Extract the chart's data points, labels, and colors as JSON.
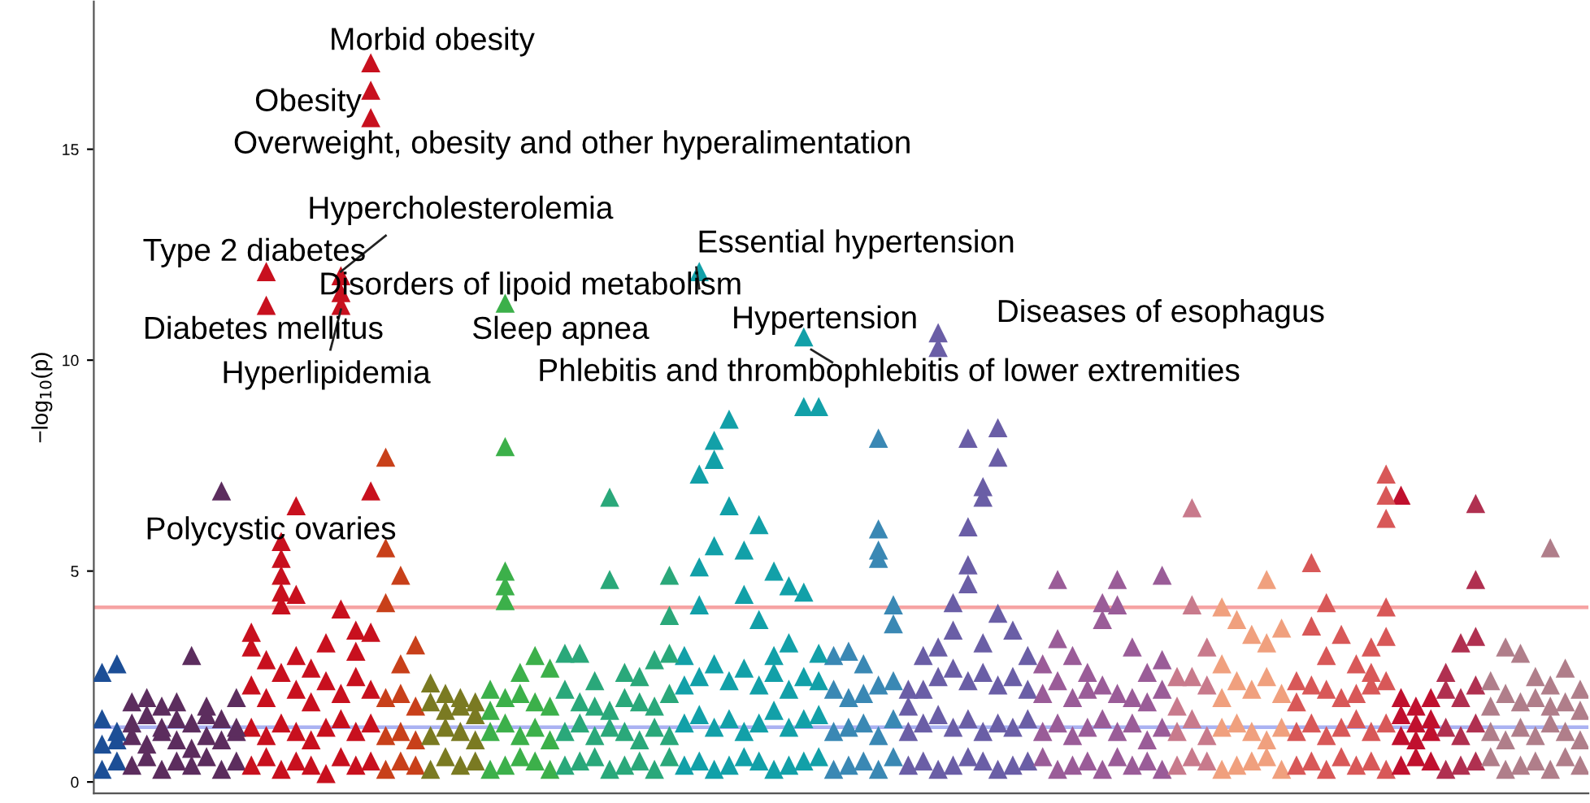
{
  "chart_data": {
    "type": "scatter",
    "ylabel": "−log$_{10}$(p)",
    "categories": [
      null,
      null,
      null,
      null,
      null,
      null,
      null,
      null,
      null,
      null,
      null,
      null,
      null,
      null,
      null,
      null,
      null,
      null,
      null,
      null,
      null,
      null,
      null,
      null,
      null,
      null,
      null,
      null,
      null,
      null,
      null,
      null,
      null,
      null,
      null,
      null,
      null,
      null,
      null,
      null,
      null,
      null,
      null,
      null,
      null,
      null,
      null,
      null,
      null,
      null,
      null,
      null,
      null,
      null,
      null,
      null,
      null,
      null,
      null,
      null,
      null,
      null,
      null,
      null,
      null,
      null,
      null,
      null,
      null,
      null,
      null,
      null,
      null,
      null,
      null,
      null,
      null,
      null,
      null,
      null,
      null,
      null,
      null,
      null,
      null,
      null,
      null,
      null,
      null,
      null,
      null,
      null,
      null,
      null,
      null,
      null,
      null,
      null,
      null,
      null
    ],
    "series": [
      {
        "values": [
          0.3,
          0.5,
          0.4,
          0.6,
          0.3,
          0.5,
          0.4,
          0.6,
          0.3,
          0.5,
          0.4,
          0.6,
          0.3,
          0.5,
          0.4,
          0.2,
          0.6,
          0.4,
          0.5,
          0.3,
          0.5,
          0.4,
          0.3,
          0.6,
          0.4,
          0.5,
          0.3,
          0.4,
          0.6,
          0.5,
          0.3,
          0.4,
          0.5,
          0.6,
          0.3,
          0.4,
          0.5,
          0.3,
          0.6,
          0.4,
          0.5,
          0.3,
          0.4,
          0.6,
          0.5,
          0.3,
          0.4,
          0.5,
          0.6,
          0.3,
          0.4,
          0.5,
          0.3,
          0.6,
          0.4,
          0.5,
          0.3,
          0.4,
          0.6,
          0.5,
          0.3,
          0.4,
          0.5,
          0.6,
          0.3,
          0.4,
          0.5,
          0.3,
          0.6,
          0.4,
          0.5,
          0.3,
          0.4,
          0.6,
          0.5,
          0.3,
          0.4,
          0.5,
          0.6,
          0.3,
          0.4,
          0.5,
          0.3,
          0.6,
          0.4,
          0.5,
          0.3,
          0.4,
          0.6,
          0.5,
          0.3,
          0.4,
          0.5,
          0.6,
          0.3,
          0.4,
          0.5,
          0.3,
          0.6,
          0.4
        ],
        "colors": [
          "#1c4e96",
          "#1c4e96",
          "#5c2d5e",
          "#5c2d5e",
          "#5c2d5e",
          "#5c2d5e",
          "#5c2d5e",
          "#5c2d5e",
          "#5c2d5e",
          "#5c2d5e",
          "#c8101e",
          "#c8101e",
          "#c8101e",
          "#c8101e",
          "#c8101e",
          "#c8101e",
          "#c8101e",
          "#c8101e",
          "#c8101e",
          "#c8401a",
          "#c8401a",
          "#c8401a",
          "#7a7a22",
          "#7a7a22",
          "#7a7a22",
          "#7a7a22",
          "#3cb04a",
          "#3cb04a",
          "#3cb04a",
          "#3cb04a",
          "#3cb04a",
          "#2aa87a",
          "#2aa87a",
          "#2aa87a",
          "#2aa87a",
          "#2aa87a",
          "#2aa87a",
          "#2aa87a",
          "#2aa87a",
          "#12a0a8",
          "#12a0a8",
          "#12a0a8",
          "#12a0a8",
          "#12a0a8",
          "#12a0a8",
          "#12a0a8",
          "#12a0a8",
          "#12a0a8",
          "#12a0a8",
          "#3a88b4",
          "#3a88b4",
          "#3a88b4",
          "#3a88b4",
          "#3a88b4",
          "#6a5ea6",
          "#6a5ea6",
          "#6a5ea6",
          "#6a5ea6",
          "#6a5ea6",
          "#6a5ea6",
          "#6a5ea6",
          "#6a5ea6",
          "#6a5ea6",
          "#9a5c98",
          "#9a5c98",
          "#9a5c98",
          "#9a5c98",
          "#9a5c98",
          "#9a5c98",
          "#9a5c98",
          "#9a5c98",
          "#9a5c98",
          "#c87a8c",
          "#c87a8c",
          "#c87a8c",
          "#f0a07e",
          "#f0a07e",
          "#f0a07e",
          "#f0a07e",
          "#f0a07e",
          "#d85858",
          "#d85858",
          "#d85858",
          "#d85858",
          "#d85858",
          "#d85858",
          "#d85858",
          "#c0102e",
          "#c0102e",
          "#c0102e",
          "#b03050",
          "#b03050",
          "#b03050",
          "#b07e8a",
          "#b07e8a",
          "#b07e8a",
          "#b07e8a",
          "#b07e8a",
          "#b07e8a",
          "#b07e8a"
        ]
      },
      {
        "values": [
          0.9,
          1.0,
          1.1,
          0.9,
          1.2,
          1.0,
          0.8,
          1.1,
          1.0,
          1.2,
          1.3,
          1.1,
          1.4,
          1.2,
          1.0,
          1.3,
          1.5,
          1.2,
          1.4,
          1.1,
          1.2,
          1.0,
          1.1,
          1.3,
          1.2,
          1.0,
          1.2,
          1.4,
          1.1,
          1.3,
          1.0,
          1.2,
          1.4,
          1.1,
          1.3,
          1.2,
          1.0,
          1.3,
          1.1,
          1.4,
          1.6,
          1.3,
          1.5,
          1.2,
          1.4,
          1.7,
          1.3,
          1.5,
          1.6,
          1.2,
          1.3,
          1.4,
          1.1,
          1.5,
          1.2,
          1.4,
          1.6,
          1.3,
          1.5,
          1.2,
          1.4,
          1.3,
          1.5,
          1.2,
          1.4,
          1.1,
          1.3,
          1.5,
          1.2,
          1.4,
          1.0,
          1.3,
          1.2,
          1.5,
          1.1,
          1.3,
          1.4,
          1.2,
          1.0,
          1.3,
          1.2,
          1.4,
          1.1,
          1.3,
          1.5,
          1.2,
          1.4,
          1.1,
          1.0,
          1.2,
          1.3,
          1.1,
          1.4,
          1.2,
          1.0,
          1.3,
          1.1,
          1.4,
          1.2,
          1.0
        ],
        "colors": [
          "#1c4e96",
          "#1c4e96",
          "#5c2d5e",
          "#5c2d5e",
          "#5c2d5e",
          "#5c2d5e",
          "#5c2d5e",
          "#5c2d5e",
          "#5c2d5e",
          "#5c2d5e",
          "#c8101e",
          "#c8101e",
          "#c8101e",
          "#c8101e",
          "#c8101e",
          "#c8101e",
          "#c8101e",
          "#c8101e",
          "#c8101e",
          "#c8401a",
          "#c8401a",
          "#c8401a",
          "#7a7a22",
          "#7a7a22",
          "#7a7a22",
          "#7a7a22",
          "#3cb04a",
          "#3cb04a",
          "#3cb04a",
          "#3cb04a",
          "#3cb04a",
          "#2aa87a",
          "#2aa87a",
          "#2aa87a",
          "#2aa87a",
          "#2aa87a",
          "#2aa87a",
          "#2aa87a",
          "#2aa87a",
          "#12a0a8",
          "#12a0a8",
          "#12a0a8",
          "#12a0a8",
          "#12a0a8",
          "#12a0a8",
          "#12a0a8",
          "#12a0a8",
          "#12a0a8",
          "#12a0a8",
          "#3a88b4",
          "#3a88b4",
          "#3a88b4",
          "#3a88b4",
          "#3a88b4",
          "#6a5ea6",
          "#6a5ea6",
          "#6a5ea6",
          "#6a5ea6",
          "#6a5ea6",
          "#6a5ea6",
          "#6a5ea6",
          "#6a5ea6",
          "#6a5ea6",
          "#9a5c98",
          "#9a5c98",
          "#9a5c98",
          "#9a5c98",
          "#9a5c98",
          "#9a5c98",
          "#9a5c98",
          "#9a5c98",
          "#9a5c98",
          "#c87a8c",
          "#c87a8c",
          "#c87a8c",
          "#f0a07e",
          "#f0a07e",
          "#f0a07e",
          "#f0a07e",
          "#f0a07e",
          "#d85858",
          "#d85858",
          "#d85858",
          "#d85858",
          "#d85858",
          "#d85858",
          "#d85858",
          "#c0102e",
          "#c0102e",
          "#c0102e",
          "#b03050",
          "#b03050",
          "#b03050",
          "#b07e8a",
          "#b07e8a",
          "#b07e8a",
          "#b07e8a",
          "#b07e8a",
          "#b07e8a",
          "#b07e8a"
        ]
      },
      {
        "values": [
          1.5,
          1.2,
          1.4,
          1.6,
          1.3,
          1.5,
          1.4,
          1.6,
          1.5,
          1.3,
          2.3,
          2.0,
          2.6,
          2.2,
          1.9,
          2.4,
          2.1,
          2.5,
          2.2,
          2.0,
          2.1,
          1.8,
          1.9,
          1.7,
          1.8,
          1.6,
          1.7,
          2.0,
          2.1,
          1.9,
          1.8,
          2.2,
          1.9,
          1.8,
          1.7,
          2.0,
          1.9,
          1.8,
          2.1,
          2.3,
          2.5,
          2.8,
          2.4,
          2.7,
          2.3,
          2.6,
          2.2,
          2.5,
          2.4,
          2.2,
          2.0,
          2.1,
          2.3,
          2.4,
          1.8,
          2.2,
          2.5,
          2.7,
          2.4,
          2.6,
          2.3,
          2.5,
          2.2,
          2.1,
          2.4,
          2.0,
          2.2,
          2.3,
          2.1,
          2.0,
          1.9,
          2.2,
          1.8,
          2.5,
          2.3,
          2.0,
          2.4,
          2.2,
          2.5,
          2.1,
          1.9,
          2.3,
          2.2,
          2.0,
          2.1,
          2.3,
          2.4,
          1.6,
          1.4,
          1.5,
          2.2,
          2.0,
          2.3,
          1.8,
          2.1,
          1.9,
          2.0,
          1.8,
          1.9,
          1.7
        ],
        "colors": [
          "#1c4e96",
          "#1c4e96",
          "#5c2d5e",
          "#5c2d5e",
          "#5c2d5e",
          "#5c2d5e",
          "#5c2d5e",
          "#5c2d5e",
          "#5c2d5e",
          "#5c2d5e",
          "#c8101e",
          "#c8101e",
          "#c8101e",
          "#c8101e",
          "#c8101e",
          "#c8101e",
          "#c8101e",
          "#c8101e",
          "#c8101e",
          "#c8401a",
          "#c8401a",
          "#c8401a",
          "#7a7a22",
          "#7a7a22",
          "#7a7a22",
          "#7a7a22",
          "#3cb04a",
          "#3cb04a",
          "#3cb04a",
          "#3cb04a",
          "#3cb04a",
          "#2aa87a",
          "#2aa87a",
          "#2aa87a",
          "#2aa87a",
          "#2aa87a",
          "#2aa87a",
          "#2aa87a",
          "#2aa87a",
          "#12a0a8",
          "#12a0a8",
          "#12a0a8",
          "#12a0a8",
          "#12a0a8",
          "#12a0a8",
          "#12a0a8",
          "#12a0a8",
          "#12a0a8",
          "#12a0a8",
          "#3a88b4",
          "#3a88b4",
          "#3a88b4",
          "#3a88b4",
          "#3a88b4",
          "#6a5ea6",
          "#6a5ea6",
          "#6a5ea6",
          "#6a5ea6",
          "#6a5ea6",
          "#6a5ea6",
          "#6a5ea6",
          "#6a5ea6",
          "#6a5ea6",
          "#9a5c98",
          "#9a5c98",
          "#9a5c98",
          "#9a5c98",
          "#9a5c98",
          "#9a5c98",
          "#9a5c98",
          "#9a5c98",
          "#9a5c98",
          "#c87a8c",
          "#c87a8c",
          "#c87a8c",
          "#f0a07e",
          "#f0a07e",
          "#f0a07e",
          "#f0a07e",
          "#f0a07e",
          "#d85858",
          "#d85858",
          "#d85858",
          "#d85858",
          "#d85858",
          "#d85858",
          "#d85858",
          "#c0102e",
          "#c0102e",
          "#c0102e",
          "#b03050",
          "#b03050",
          "#b03050",
          "#b07e8a",
          "#b07e8a",
          "#b07e8a",
          "#b07e8a",
          "#b07e8a",
          "#b07e8a",
          "#b07e8a"
        ]
      },
      {
        "values": [
          2.6,
          2.8,
          1.9,
          2.0,
          1.8,
          1.9,
          3.0,
          1.8,
          6.9,
          2.0,
          3.55,
          12.1,
          5.7,
          6.55,
          2.7,
          3.3,
          12.0,
          3.6,
          17.05,
          7.7,
          4.9,
          3.25,
          2.35,
          2.1,
          2.0,
          1.9,
          2.2,
          11.35,
          2.6,
          3.0,
          2.7,
          3.05,
          3.05,
          2.4,
          6.75,
          2.6,
          2.5,
          2.9,
          4.9,
          3.0,
          12.1,
          8.1,
          8.6,
          5.5,
          6.1,
          5.0,
          4.65,
          10.55,
          8.9,
          3.0,
          3.1,
          2.8,
          8.15,
          4.2,
          2.2,
          3.0,
          10.65,
          4.25,
          8.15,
          7.0,
          8.4,
          3.6,
          3.0,
          2.8,
          4.8,
          3.0,
          2.6,
          4.25,
          4.8,
          3.2,
          2.6,
          4.9,
          2.5,
          6.5,
          3.2,
          4.15,
          3.85,
          3.5,
          4.8,
          3.65,
          2.4,
          5.2,
          4.25,
          3.5,
          2.8,
          3.2,
          7.3,
          6.8,
          1.8,
          2.0,
          2.6,
          3.3,
          6.6,
          2.4,
          3.2,
          3.05,
          2.5,
          5.55,
          2.7,
          2.2
        ],
        "colors": [
          "#1c4e96",
          "#1c4e96",
          "#5c2d5e",
          "#5c2d5e",
          "#5c2d5e",
          "#5c2d5e",
          "#5c2d5e",
          "#5c2d5e",
          "#5c2d5e",
          "#5c2d5e",
          "#c8101e",
          "#c8101e",
          "#c8101e",
          "#c8101e",
          "#c8101e",
          "#c8101e",
          "#c8101e",
          "#c8101e",
          "#c8101e",
          "#c8401a",
          "#c8401a",
          "#c8401a",
          "#7a7a22",
          "#7a7a22",
          "#7a7a22",
          "#7a7a22",
          "#3cb04a",
          "#3cb04a",
          "#3cb04a",
          "#3cb04a",
          "#3cb04a",
          "#2aa87a",
          "#2aa87a",
          "#2aa87a",
          "#2aa87a",
          "#2aa87a",
          "#2aa87a",
          "#2aa87a",
          "#2aa87a",
          "#12a0a8",
          "#12a0a8",
          "#12a0a8",
          "#12a0a8",
          "#12a0a8",
          "#12a0a8",
          "#12a0a8",
          "#12a0a8",
          "#12a0a8",
          "#12a0a8",
          "#3a88b4",
          "#3a88b4",
          "#3a88b4",
          "#3a88b4",
          "#3a88b4",
          "#6a5ea6",
          "#6a5ea6",
          "#6a5ea6",
          "#6a5ea6",
          "#6a5ea6",
          "#6a5ea6",
          "#6a5ea6",
          "#6a5ea6",
          "#6a5ea6",
          "#9a5c98",
          "#9a5c98",
          "#9a5c98",
          "#9a5c98",
          "#9a5c98",
          "#9a5c98",
          "#9a5c98",
          "#9a5c98",
          "#9a5c98",
          "#c87a8c",
          "#c87a8c",
          "#c87a8c",
          "#f0a07e",
          "#f0a07e",
          "#f0a07e",
          "#f0a07e",
          "#f0a07e",
          "#d85858",
          "#d85858",
          "#d85858",
          "#d85858",
          "#d85858",
          "#d85858",
          "#d85858",
          "#c0102e",
          "#c0102e",
          "#c0102e",
          "#b03050",
          "#b03050",
          "#b03050",
          "#b07e8a",
          "#b07e8a",
          "#b07e8a",
          "#b07e8a",
          "#b07e8a",
          "#b07e8a",
          "#b07e8a"
        ]
      },
      {
        "values": [
          null,
          null,
          null,
          null,
          null,
          null,
          null,
          null,
          null,
          null,
          3.2,
          11.3,
          5.3,
          4.45,
          null,
          null,
          11.6,
          3.1,
          16.4,
          5.55,
          2.8,
          null,
          null,
          null,
          null,
          null,
          null,
          7.95,
          null,
          null,
          null,
          null,
          null,
          null,
          4.8,
          null,
          null,
          null,
          3.95,
          null,
          7.3,
          7.65,
          6.55,
          4.45,
          3.85,
          3.0,
          3.3,
          8.9,
          3.05,
          null,
          null,
          null,
          6.0,
          3.75,
          null,
          null,
          10.3,
          3.6,
          6.05,
          6.75,
          7.7,
          null,
          null,
          null,
          3.4,
          null,
          null,
          3.85,
          4.2,
          null,
          null,
          2.9,
          null,
          4.2,
          null,
          2.8,
          null,
          null,
          3.3,
          null,
          null,
          3.7,
          3.0,
          null,
          null,
          2.6,
          6.8,
          2.0,
          null,
          null,
          null,
          null,
          4.8,
          null,
          null,
          null,
          null,
          2.3,
          null,
          null
        ],
        "colors": [
          "#1c4e96",
          "#1c4e96",
          "#5c2d5e",
          "#5c2d5e",
          "#5c2d5e",
          "#5c2d5e",
          "#5c2d5e",
          "#5c2d5e",
          "#5c2d5e",
          "#5c2d5e",
          "#c8101e",
          "#c8101e",
          "#c8101e",
          "#c8101e",
          "#c8101e",
          "#c8101e",
          "#c8101e",
          "#c8101e",
          "#c8101e",
          "#c8401a",
          "#c8401a",
          "#c8401a",
          "#7a7a22",
          "#7a7a22",
          "#7a7a22",
          "#7a7a22",
          "#3cb04a",
          "#3cb04a",
          "#3cb04a",
          "#3cb04a",
          "#3cb04a",
          "#2aa87a",
          "#2aa87a",
          "#2aa87a",
          "#2aa87a",
          "#2aa87a",
          "#2aa87a",
          "#2aa87a",
          "#2aa87a",
          "#12a0a8",
          "#12a0a8",
          "#12a0a8",
          "#12a0a8",
          "#12a0a8",
          "#12a0a8",
          "#12a0a8",
          "#12a0a8",
          "#12a0a8",
          "#12a0a8",
          "#3a88b4",
          "#3a88b4",
          "#3a88b4",
          "#3a88b4",
          "#3a88b4",
          "#6a5ea6",
          "#6a5ea6",
          "#6a5ea6",
          "#6a5ea6",
          "#6a5ea6",
          "#6a5ea6",
          "#6a5ea6",
          "#6a5ea6",
          "#6a5ea6",
          "#9a5c98",
          "#9a5c98",
          "#9a5c98",
          "#9a5c98",
          "#9a5c98",
          "#9a5c98",
          "#9a5c98",
          "#9a5c98",
          "#9a5c98",
          "#c87a8c",
          "#c87a8c",
          "#c87a8c",
          "#f0a07e",
          "#f0a07e",
          "#f0a07e",
          "#f0a07e",
          "#f0a07e",
          "#d85858",
          "#d85858",
          "#d85858",
          "#d85858",
          "#d85858",
          "#d85858",
          "#d85858",
          "#c0102e",
          "#c0102e",
          "#c0102e",
          "#b03050",
          "#b03050",
          "#b03050",
          "#b07e8a",
          "#b07e8a",
          "#b07e8a",
          "#b07e8a",
          "#b07e8a",
          "#b07e8a",
          "#b07e8a"
        ]
      },
      {
        "values": [
          null,
          null,
          null,
          null,
          null,
          null,
          null,
          null,
          null,
          null,
          null,
          2.9,
          4.9,
          3.0,
          null,
          null,
          11.3,
          null,
          15.75,
          4.25,
          null,
          null,
          null,
          null,
          null,
          null,
          null,
          5.0,
          null,
          null,
          null,
          null,
          null,
          null,
          null,
          null,
          null,
          null,
          3.05,
          null,
          5.1,
          5.6,
          null,
          null,
          null,
          null,
          null,
          4.5,
          null,
          null,
          null,
          null,
          5.5,
          null,
          null,
          null,
          3.2,
          null,
          5.15,
          3.3,
          4.0,
          null,
          null,
          null,
          null,
          null,
          null,
          null,
          null,
          null,
          null,
          null,
          null,
          null,
          null,
          null,
          null,
          null,
          null,
          null,
          null,
          null,
          null,
          null,
          null,
          null,
          6.25,
          null,
          null,
          null,
          null,
          null,
          3.45,
          null,
          null,
          null,
          null,
          null,
          null,
          null
        ],
        "colors": [
          "#1c4e96",
          "#1c4e96",
          "#5c2d5e",
          "#5c2d5e",
          "#5c2d5e",
          "#5c2d5e",
          "#5c2d5e",
          "#5c2d5e",
          "#5c2d5e",
          "#5c2d5e",
          "#c8101e",
          "#c8101e",
          "#c8101e",
          "#c8101e",
          "#c8101e",
          "#c8101e",
          "#c8101e",
          "#c8101e",
          "#c8101e",
          "#c8401a",
          "#c8401a",
          "#c8401a",
          "#7a7a22",
          "#7a7a22",
          "#7a7a22",
          "#7a7a22",
          "#3cb04a",
          "#3cb04a",
          "#3cb04a",
          "#3cb04a",
          "#3cb04a",
          "#2aa87a",
          "#2aa87a",
          "#2aa87a",
          "#2aa87a",
          "#2aa87a",
          "#2aa87a",
          "#2aa87a",
          "#2aa87a",
          "#12a0a8",
          "#12a0a8",
          "#12a0a8",
          "#12a0a8",
          "#12a0a8",
          "#12a0a8",
          "#12a0a8",
          "#12a0a8",
          "#12a0a8",
          "#12a0a8",
          "#3a88b4",
          "#3a88b4",
          "#3a88b4",
          "#3a88b4",
          "#3a88b4",
          "#6a5ea6",
          "#6a5ea6",
          "#6a5ea6",
          "#6a5ea6",
          "#6a5ea6",
          "#6a5ea6",
          "#6a5ea6",
          "#6a5ea6",
          "#6a5ea6",
          "#9a5c98",
          "#9a5c98",
          "#9a5c98",
          "#9a5c98",
          "#9a5c98",
          "#9a5c98",
          "#9a5c98",
          "#9a5c98",
          "#9a5c98",
          "#c87a8c",
          "#c87a8c",
          "#c87a8c",
          "#f0a07e",
          "#f0a07e",
          "#f0a07e",
          "#f0a07e",
          "#f0a07e",
          "#d85858",
          "#d85858",
          "#d85858",
          "#d85858",
          "#d85858",
          "#d85858",
          "#d85858",
          "#c0102e",
          "#c0102e",
          "#c0102e",
          "#b03050",
          "#b03050",
          "#b03050",
          "#b07e8a",
          "#b07e8a",
          "#b07e8a",
          "#b07e8a",
          "#b07e8a",
          "#b07e8a",
          "#b07e8a"
        ]
      },
      {
        "values": [
          null,
          null,
          null,
          null,
          null,
          null,
          null,
          null,
          null,
          null,
          null,
          null,
          4.5,
          null,
          null,
          null,
          4.1,
          null,
          6.9,
          null,
          null,
          null,
          null,
          null,
          null,
          null,
          null,
          4.65,
          null,
          null,
          null,
          null,
          null,
          null,
          null,
          null,
          null,
          null,
          null,
          null,
          4.2,
          null,
          null,
          null,
          null,
          null,
          null,
          null,
          null,
          null,
          null,
          null,
          5.3,
          null,
          null,
          null,
          null,
          null,
          4.7,
          null,
          null,
          null,
          null,
          null,
          null,
          null,
          null,
          null,
          null,
          null,
          null,
          null,
          null,
          null,
          null,
          null,
          null,
          null,
          null,
          null,
          null,
          null,
          null,
          null,
          null,
          null,
          4.15,
          null,
          null,
          null,
          null,
          null,
          null,
          null,
          null,
          null,
          null,
          null,
          null,
          null
        ],
        "colors": [
          "#1c4e96",
          "#1c4e96",
          "#5c2d5e",
          "#5c2d5e",
          "#5c2d5e",
          "#5c2d5e",
          "#5c2d5e",
          "#5c2d5e",
          "#5c2d5e",
          "#5c2d5e",
          "#c8101e",
          "#c8101e",
          "#c8101e",
          "#c8101e",
          "#c8101e",
          "#c8101e",
          "#c8101e",
          "#c8101e",
          "#c8101e",
          "#c8401a",
          "#c8401a",
          "#c8401a",
          "#7a7a22",
          "#7a7a22",
          "#7a7a22",
          "#7a7a22",
          "#3cb04a",
          "#3cb04a",
          "#3cb04a",
          "#3cb04a",
          "#3cb04a",
          "#2aa87a",
          "#2aa87a",
          "#2aa87a",
          "#2aa87a",
          "#2aa87a",
          "#2aa87a",
          "#2aa87a",
          "#2aa87a",
          "#12a0a8",
          "#12a0a8",
          "#12a0a8",
          "#12a0a8",
          "#12a0a8",
          "#12a0a8",
          "#12a0a8",
          "#12a0a8",
          "#12a0a8",
          "#12a0a8",
          "#3a88b4",
          "#3a88b4",
          "#3a88b4",
          "#3a88b4",
          "#3a88b4",
          "#6a5ea6",
          "#6a5ea6",
          "#6a5ea6",
          "#6a5ea6",
          "#6a5ea6",
          "#6a5ea6",
          "#6a5ea6",
          "#6a5ea6",
          "#6a5ea6",
          "#9a5c98",
          "#9a5c98",
          "#9a5c98",
          "#9a5c98",
          "#9a5c98",
          "#9a5c98",
          "#9a5c98",
          "#9a5c98",
          "#9a5c98",
          "#c87a8c",
          "#c87a8c",
          "#c87a8c",
          "#f0a07e",
          "#f0a07e",
          "#f0a07e",
          "#f0a07e",
          "#f0a07e",
          "#d85858",
          "#d85858",
          "#d85858",
          "#d85858",
          "#d85858",
          "#d85858",
          "#d85858",
          "#c0102e",
          "#c0102e",
          "#c0102e",
          "#b03050",
          "#b03050",
          "#b03050",
          "#b07e8a",
          "#b07e8a",
          "#b07e8a",
          "#b07e8a",
          "#b07e8a",
          "#b07e8a",
          "#b07e8a"
        ]
      },
      {
        "values": [
          null,
          null,
          null,
          null,
          null,
          null,
          null,
          null,
          null,
          null,
          null,
          null,
          4.2,
          null,
          null,
          null,
          null,
          null,
          3.55,
          null,
          null,
          null,
          null,
          null,
          null,
          null,
          null,
          4.3,
          null,
          null,
          null,
          null,
          null,
          null,
          null,
          null,
          null,
          null,
          null,
          null,
          null,
          null,
          null,
          null,
          null,
          null,
          null,
          null,
          null,
          null,
          null,
          null,
          null,
          null,
          null,
          null,
          null,
          null,
          null,
          null,
          null,
          null,
          null,
          null,
          null,
          null,
          null,
          null,
          null,
          null,
          null,
          null,
          null,
          null,
          null,
          null,
          null,
          null,
          null,
          null,
          null,
          null,
          null,
          null,
          null,
          null,
          3.45,
          null,
          null,
          null,
          null,
          null,
          null,
          null,
          null,
          null,
          null,
          null,
          null,
          null
        ],
        "colors": [
          "#1c4e96",
          "#1c4e96",
          "#5c2d5e",
          "#5c2d5e",
          "#5c2d5e",
          "#5c2d5e",
          "#5c2d5e",
          "#5c2d5e",
          "#5c2d5e",
          "#5c2d5e",
          "#c8101e",
          "#c8101e",
          "#c8101e",
          "#c8101e",
          "#c8101e",
          "#c8101e",
          "#c8101e",
          "#c8101e",
          "#c8101e",
          "#c8401a",
          "#c8401a",
          "#c8401a",
          "#7a7a22",
          "#7a7a22",
          "#7a7a22",
          "#7a7a22",
          "#3cb04a",
          "#3cb04a",
          "#3cb04a",
          "#3cb04a",
          "#3cb04a",
          "#2aa87a",
          "#2aa87a",
          "#2aa87a",
          "#2aa87a",
          "#2aa87a",
          "#2aa87a",
          "#2aa87a",
          "#2aa87a",
          "#12a0a8",
          "#12a0a8",
          "#12a0a8",
          "#12a0a8",
          "#12a0a8",
          "#12a0a8",
          "#12a0a8",
          "#12a0a8",
          "#12a0a8",
          "#12a0a8",
          "#3a88b4",
          "#3a88b4",
          "#3a88b4",
          "#3a88b4",
          "#3a88b4",
          "#6a5ea6",
          "#6a5ea6",
          "#6a5ea6",
          "#6a5ea6",
          "#6a5ea6",
          "#6a5ea6",
          "#6a5ea6",
          "#6a5ea6",
          "#6a5ea6",
          "#9a5c98",
          "#9a5c98",
          "#9a5c98",
          "#9a5c98",
          "#9a5c98",
          "#9a5c98",
          "#9a5c98",
          "#9a5c98",
          "#9a5c98",
          "#c87a8c",
          "#c87a8c",
          "#c87a8c",
          "#f0a07e",
          "#f0a07e",
          "#f0a07e",
          "#f0a07e",
          "#f0a07e",
          "#d85858",
          "#d85858",
          "#d85858",
          "#d85858",
          "#d85858",
          "#d85858",
          "#d85858",
          "#c0102e",
          "#c0102e",
          "#c0102e",
          "#b03050",
          "#b03050",
          "#b03050",
          "#b07e8a",
          "#b07e8a",
          "#b07e8a",
          "#b07e8a",
          "#b07e8a",
          "#b07e8a",
          "#b07e8a"
        ]
      }
    ],
    "marker": "triangle",
    "ylim": [
      -0.27,
      18.5
    ],
    "yticks": [
      0,
      5,
      10,
      15
    ],
    "ref_lines": [
      {
        "axis": "y",
        "value": 4.14,
        "color": "#f6a3a3"
      },
      {
        "axis": "y",
        "value": 1.3,
        "color": "#aab2f2"
      }
    ],
    "annotations": [
      "Morbid obesity",
      "Obesity",
      "Overweight, obesity and other hyperalimentation",
      "Hypercholesterolemia",
      "Type 2 diabetes",
      "Disorders of lipoid metabolism",
      "Diabetes mellitus",
      "Hyperlipidemia",
      "Sleep apnea",
      "Essential hypertension",
      "Hypertension",
      "Phlebitis and thrombophlebitis of lower extremities",
      "Diseases of esophagus",
      "Polycystic ovaries"
    ],
    "grid": false,
    "legend": false
  }
}
